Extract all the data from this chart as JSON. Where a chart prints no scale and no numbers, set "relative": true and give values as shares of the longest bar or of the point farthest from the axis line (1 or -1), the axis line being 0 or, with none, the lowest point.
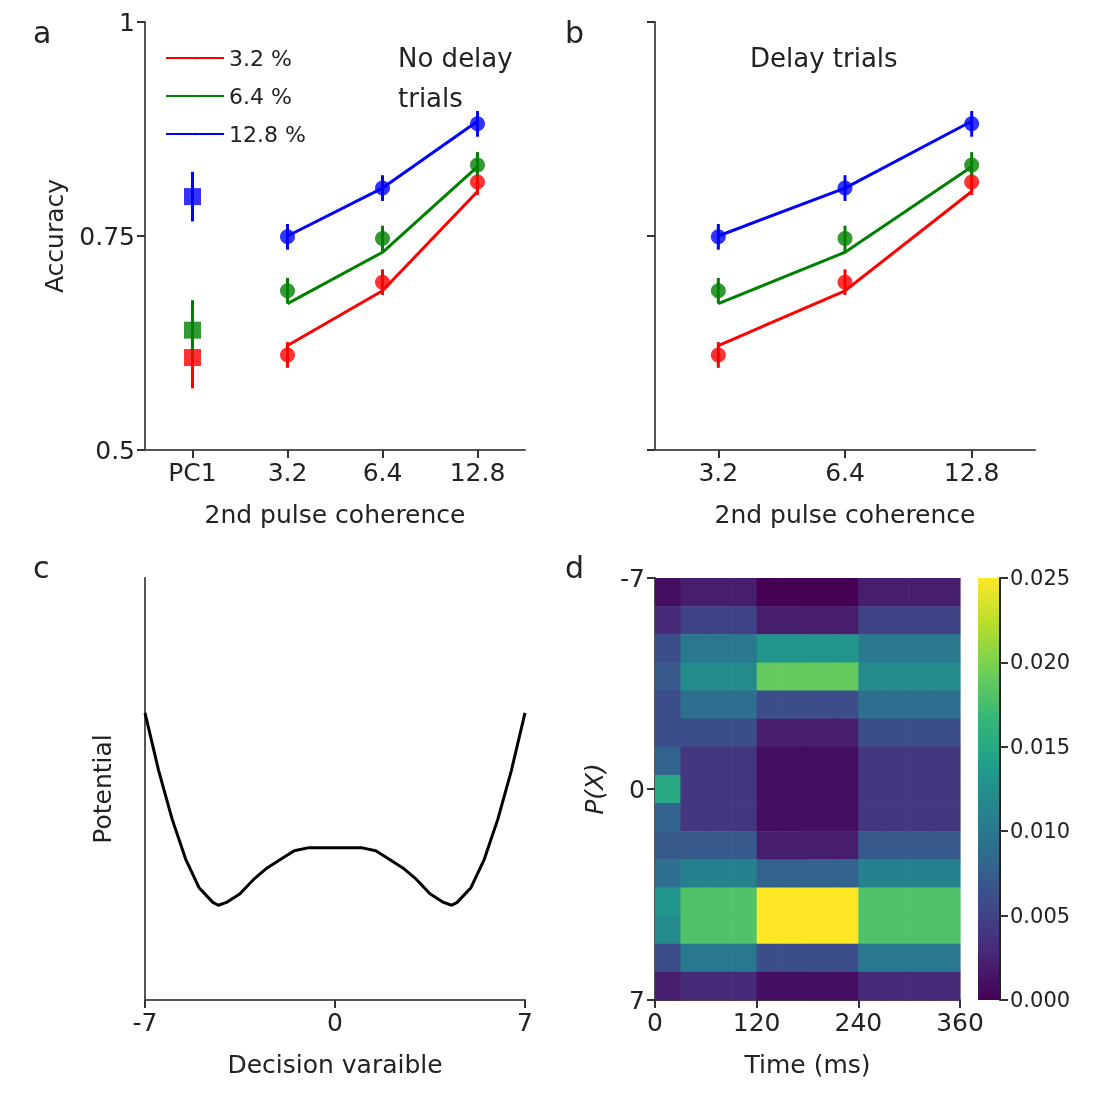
{
  "chart_data": [
    {
      "type": "line",
      "title": "a",
      "annotations": [
        "No delay trials"
      ],
      "xlabel": "2nd pulse coherence",
      "ylabel": "Accuracy",
      "categories": [
        "PC1",
        "3.2",
        "6.4",
        "12.8"
      ],
      "ylim": [
        0.5,
        1
      ],
      "yticks": [
        0.5,
        0.75,
        1
      ],
      "grid": false,
      "legend": "top left",
      "series": [
        {
          "name": "3.2 %",
          "type": "line",
          "marker": "none",
          "color": "#ff0000",
          "x": [
            "3.2",
            "6.4",
            "12.8"
          ],
          "values": [
            0.622,
            0.686,
            0.802
          ]
        },
        {
          "name": "6.4 %",
          "type": "line",
          "marker": "none",
          "color": "#008000",
          "x": [
            "3.2",
            "6.4",
            "12.8"
          ],
          "values": [
            0.671,
            0.731,
            0.831
          ]
        },
        {
          "name": "12.8 %",
          "type": "line",
          "marker": "none",
          "color": "#0000ff",
          "x": [
            "3.2",
            "6.4",
            "12.8"
          ],
          "values": [
            0.75,
            0.806,
            0.884
          ]
        },
        {
          "type": "scatter",
          "marker": "circle",
          "color": "#ff0000",
          "x": [
            "3.2",
            "6.4",
            "12.8"
          ],
          "values": [
            0.611,
            0.696,
            0.813
          ],
          "errors": [
            0.015,
            0.015,
            0.015
          ]
        },
        {
          "type": "scatter",
          "marker": "circle",
          "color": "#008000",
          "x": [
            "3.2",
            "6.4",
            "12.8"
          ],
          "values": [
            0.686,
            0.747,
            0.833
          ],
          "errors": [
            0.015,
            0.015,
            0.015
          ]
        },
        {
          "type": "scatter",
          "marker": "circle",
          "color": "#0000ff",
          "x": [
            "3.2",
            "6.4",
            "12.8"
          ],
          "values": [
            0.749,
            0.806,
            0.881
          ],
          "errors": [
            0.015,
            0.015,
            0.015
          ]
        },
        {
          "type": "scatter",
          "marker": "square",
          "color": "#ff0000",
          "x": [
            "PC1"
          ],
          "values": [
            0.608
          ],
          "errors": [
            0.036
          ]
        },
        {
          "type": "scatter",
          "marker": "square",
          "color": "#008000",
          "x": [
            "PC1"
          ],
          "values": [
            0.64
          ],
          "errors": [
            0.035
          ]
        },
        {
          "type": "scatter",
          "marker": "square",
          "color": "#0000ff",
          "x": [
            "PC1"
          ],
          "values": [
            0.796
          ],
          "errors": [
            0.029
          ]
        }
      ]
    },
    {
      "type": "line",
      "title": "b",
      "annotations": [
        "Delay trials"
      ],
      "xlabel": "2nd pulse coherence",
      "categories": [
        "3.2",
        "6.4",
        "12.8"
      ],
      "ylim": [
        0.5,
        1
      ],
      "yticks": [
        {
          "value": 0.5,
          "label": null
        },
        {
          "value": 0.75,
          "label": null
        },
        {
          "value": 1,
          "label": null
        }
      ],
      "grid": false,
      "tick_labels": "x",
      "series": [
        {
          "type": "line",
          "marker": "none",
          "color": "#ff0000",
          "values": [
            0.622,
            0.686,
            0.802
          ]
        },
        {
          "type": "line",
          "marker": "none",
          "color": "#008000",
          "values": [
            0.671,
            0.731,
            0.831
          ]
        },
        {
          "type": "line",
          "marker": "none",
          "color": "#0000ff",
          "values": [
            0.75,
            0.806,
            0.884
          ]
        },
        {
          "type": "scatter",
          "marker": "circle",
          "color": "#ff0000",
          "values": [
            0.611,
            0.696,
            0.813
          ],
          "errors": [
            0.015,
            0.015,
            0.015
          ]
        },
        {
          "type": "scatter",
          "marker": "circle",
          "color": "#008000",
          "values": [
            0.686,
            0.747,
            0.833
          ],
          "errors": [
            0.015,
            0.015,
            0.015
          ]
        },
        {
          "type": "scatter",
          "marker": "circle",
          "color": "#0000ff",
          "values": [
            0.749,
            0.806,
            0.881
          ],
          "errors": [
            0.015,
            0.015,
            0.015
          ]
        }
      ]
    },
    {
      "type": "line",
      "title": "c",
      "xlabel": "Decision varaible",
      "ylabel": "Potential",
      "relative": true,
      "grid": false,
      "marker": "none",
      "xlim": [
        -7,
        7
      ],
      "xticks": [
        -7,
        0,
        7
      ],
      "x": [
        -7,
        -6.5,
        -6,
        -5.5,
        -5,
        -4.5,
        -4.3,
        -4,
        -3.5,
        -3,
        -2.5,
        -2,
        -1.5,
        -1,
        -0.5,
        0,
        0.5,
        1,
        1.5,
        2,
        2.5,
        3,
        3.5,
        4,
        4.3,
        4.5,
        5,
        5.5,
        6,
        6.5,
        7
      ],
      "series": [
        {
          "color": "#000000",
          "values": [
            1,
            0.8,
            0.63,
            0.49,
            0.39,
            0.34,
            0.33,
            0.34,
            0.37,
            0.42,
            0.46,
            0.49,
            0.52,
            0.53,
            0.53,
            0.53,
            0.53,
            0.53,
            0.52,
            0.49,
            0.46,
            0.42,
            0.37,
            0.34,
            0.33,
            0.34,
            0.39,
            0.49,
            0.63,
            0.8,
            1
          ]
        }
      ]
    },
    {
      "type": "heatmap",
      "title": "d",
      "xlabel": "Time (ms)",
      "ylabel": "P(X)",
      "x": [
        15,
        45,
        75,
        105,
        135,
        165,
        195,
        225,
        255,
        285,
        315,
        345
      ],
      "xlim": [
        0,
        360
      ],
      "xticks": [
        0,
        120,
        240,
        360
      ],
      "ylim": [
        7,
        -7
      ],
      "yticks": [
        -7,
        0,
        7
      ],
      "clim": [
        0,
        0.025
      ],
      "cticks": [
        {
          "value": 0,
          "label": "0.000"
        },
        {
          "value": 0.005,
          "label": "0.005"
        },
        {
          "value": 0.01,
          "label": "0.010"
        },
        {
          "value": 0.015,
          "label": "0.015"
        },
        {
          "value": 0.02,
          "label": "0.020"
        },
        {
          "value": 0.025,
          "label": "0.025"
        }
      ],
      "cells": [
        [
          0.001,
          0.002,
          0.002,
          0.002,
          0.0,
          0.0,
          0.0,
          0.0,
          0.002,
          0.002,
          0.002,
          0.002
        ],
        [
          0.003,
          0.005,
          0.005,
          0.005,
          0.002,
          0.002,
          0.002,
          0.002,
          0.005,
          0.005,
          0.005,
          0.005
        ],
        [
          0.006,
          0.01,
          0.01,
          0.01,
          0.013,
          0.013,
          0.013,
          0.013,
          0.01,
          0.01,
          0.01,
          0.01
        ],
        [
          0.007,
          0.012,
          0.012,
          0.012,
          0.019,
          0.019,
          0.019,
          0.019,
          0.012,
          0.012,
          0.012,
          0.012
        ],
        [
          0.006,
          0.009,
          0.009,
          0.009,
          0.006,
          0.006,
          0.006,
          0.006,
          0.009,
          0.009,
          0.009,
          0.009
        ],
        [
          0.006,
          0.006,
          0.006,
          0.006,
          0.002,
          0.002,
          0.002,
          0.002,
          0.006,
          0.006,
          0.006,
          0.006
        ],
        [
          0.008,
          0.004,
          0.004,
          0.004,
          0.001,
          0.001,
          0.001,
          0.001,
          0.004,
          0.004,
          0.004,
          0.004
        ],
        [
          0.015,
          0.004,
          0.004,
          0.004,
          0.001,
          0.001,
          0.001,
          0.001,
          0.004,
          0.004,
          0.004,
          0.004
        ],
        [
          0.008,
          0.004,
          0.004,
          0.004,
          0.001,
          0.001,
          0.001,
          0.001,
          0.004,
          0.004,
          0.004,
          0.004
        ],
        [
          0.007,
          0.007,
          0.007,
          0.007,
          0.002,
          0.002,
          0.002,
          0.002,
          0.007,
          0.007,
          0.007,
          0.007
        ],
        [
          0.009,
          0.011,
          0.011,
          0.011,
          0.008,
          0.008,
          0.008,
          0.008,
          0.011,
          0.011,
          0.011,
          0.011
        ],
        [
          0.013,
          0.018,
          0.018,
          0.018,
          0.025,
          0.025,
          0.025,
          0.025,
          0.018,
          0.018,
          0.018,
          0.018
        ],
        [
          0.012,
          0.018,
          0.018,
          0.018,
          0.025,
          0.025,
          0.025,
          0.025,
          0.018,
          0.018,
          0.018,
          0.018
        ],
        [
          0.006,
          0.01,
          0.01,
          0.01,
          0.006,
          0.006,
          0.006,
          0.006,
          0.01,
          0.01,
          0.01,
          0.01
        ],
        [
          0.002,
          0.003,
          0.003,
          0.003,
          0.001,
          0.001,
          0.001,
          0.001,
          0.003,
          0.003,
          0.003,
          0.003
        ]
      ]
    }
  ]
}
